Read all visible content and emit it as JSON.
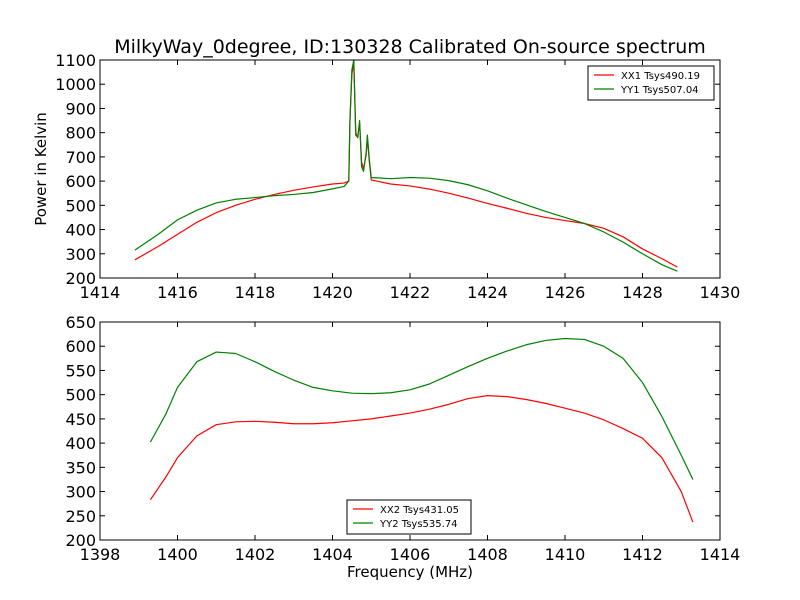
{
  "chart_data": [
    {
      "type": "line",
      "title": "MilkyWay_0degree, ID:130328 Calibrated On-source spectrum",
      "xlabel": "",
      "ylabel": "Power in Kelvin",
      "xlim": [
        1414,
        1430
      ],
      "ylim": [
        200,
        1100
      ],
      "xticks": [
        1414,
        1416,
        1418,
        1420,
        1422,
        1424,
        1426,
        1428,
        1430
      ],
      "yticks": [
        200,
        300,
        400,
        500,
        600,
        700,
        800,
        900,
        1000,
        1100
      ],
      "grid": false,
      "legend_position": "top-right",
      "series": [
        {
          "name": "XX1 Tsys490.19",
          "color": "#ff0000",
          "points": [
            [
              1414.9,
              275
            ],
            [
              1415.5,
              330
            ],
            [
              1416,
              380
            ],
            [
              1416.5,
              430
            ],
            [
              1417,
              470
            ],
            [
              1417.5,
              500
            ],
            [
              1418,
              525
            ],
            [
              1418.5,
              545
            ],
            [
              1419,
              562
            ],
            [
              1419.5,
              576
            ],
            [
              1420,
              588
            ],
            [
              1420.3,
              592
            ],
            [
              1420.42,
              600
            ],
            [
              1420.45,
              850
            ],
            [
              1420.5,
              1040
            ],
            [
              1420.55,
              1090
            ],
            [
              1420.6,
              800
            ],
            [
              1420.65,
              780
            ],
            [
              1420.7,
              840
            ],
            [
              1420.75,
              680
            ],
            [
              1420.8,
              650
            ],
            [
              1420.87,
              710
            ],
            [
              1420.9,
              780
            ],
            [
              1420.95,
              680
            ],
            [
              1421,
              605
            ],
            [
              1421.5,
              588
            ],
            [
              1422,
              580
            ],
            [
              1422.5,
              567
            ],
            [
              1423,
              550
            ],
            [
              1423.5,
              530
            ],
            [
              1424,
              508
            ],
            [
              1424.5,
              488
            ],
            [
              1425,
              467
            ],
            [
              1425.5,
              450
            ],
            [
              1426,
              437
            ],
            [
              1426.5,
              425
            ],
            [
              1427,
              405
            ],
            [
              1427.5,
              370
            ],
            [
              1428,
              320
            ],
            [
              1428.5,
              280
            ],
            [
              1428.9,
              245
            ]
          ]
        },
        {
          "name": "YY1 Tsys507.04",
          "color": "#008000",
          "points": [
            [
              1414.9,
              315
            ],
            [
              1415.5,
              380
            ],
            [
              1416,
              440
            ],
            [
              1416.5,
              480
            ],
            [
              1417,
              510
            ],
            [
              1417.5,
              525
            ],
            [
              1418,
              532
            ],
            [
              1418.5,
              540
            ],
            [
              1419,
              545
            ],
            [
              1419.5,
              553
            ],
            [
              1420,
              568
            ],
            [
              1420.3,
              578
            ],
            [
              1420.42,
              600
            ],
            [
              1420.45,
              850
            ],
            [
              1420.5,
              1060
            ],
            [
              1420.55,
              1100
            ],
            [
              1420.6,
              790
            ],
            [
              1420.65,
              780
            ],
            [
              1420.7,
              850
            ],
            [
              1420.75,
              660
            ],
            [
              1420.8,
              640
            ],
            [
              1420.87,
              720
            ],
            [
              1420.9,
              790
            ],
            [
              1420.95,
              690
            ],
            [
              1421,
              615
            ],
            [
              1421.5,
              610
            ],
            [
              1422,
              615
            ],
            [
              1422.5,
              612
            ],
            [
              1423,
              602
            ],
            [
              1423.5,
              585
            ],
            [
              1424,
              560
            ],
            [
              1424.5,
              530
            ],
            [
              1425,
              502
            ],
            [
              1425.5,
              475
            ],
            [
              1426,
              450
            ],
            [
              1426.5,
              425
            ],
            [
              1427,
              390
            ],
            [
              1427.5,
              348
            ],
            [
              1428,
              300
            ],
            [
              1428.5,
              255
            ],
            [
              1428.9,
              228
            ]
          ]
        }
      ]
    },
    {
      "type": "line",
      "title": "",
      "xlabel": "Frequency (MHz)",
      "ylabel": "",
      "xlim": [
        1398,
        1414
      ],
      "ylim": [
        200,
        650
      ],
      "xticks": [
        1398,
        1400,
        1402,
        1404,
        1406,
        1408,
        1410,
        1412,
        1414
      ],
      "yticks": [
        200,
        250,
        300,
        350,
        400,
        450,
        500,
        550,
        600,
        650
      ],
      "grid": false,
      "legend_position": "bottom-center",
      "series": [
        {
          "name": "XX2 Tsys431.05",
          "color": "#ff0000",
          "points": [
            [
              1399.3,
              283
            ],
            [
              1399.7,
              330
            ],
            [
              1400,
              370
            ],
            [
              1400.5,
              415
            ],
            [
              1401,
              438
            ],
            [
              1401.5,
              444
            ],
            [
              1402,
              445
            ],
            [
              1402.5,
              443
            ],
            [
              1403,
              440
            ],
            [
              1403.5,
              440
            ],
            [
              1404,
              442
            ],
            [
              1404.5,
              446
            ],
            [
              1405,
              450
            ],
            [
              1405.5,
              456
            ],
            [
              1406,
              462
            ],
            [
              1406.5,
              470
            ],
            [
              1407,
              480
            ],
            [
              1407.5,
              492
            ],
            [
              1408,
              498
            ],
            [
              1408.5,
              496
            ],
            [
              1409,
              490
            ],
            [
              1409.5,
              482
            ],
            [
              1410,
              472
            ],
            [
              1410.5,
              462
            ],
            [
              1411,
              448
            ],
            [
              1411.5,
              430
            ],
            [
              1412,
              410
            ],
            [
              1412.5,
              370
            ],
            [
              1413,
              300
            ],
            [
              1413.3,
              237
            ]
          ]
        },
        {
          "name": "YY2 Tsys535.74",
          "color": "#008000",
          "points": [
            [
              1399.3,
              402
            ],
            [
              1399.7,
              460
            ],
            [
              1400,
              515
            ],
            [
              1400.5,
              568
            ],
            [
              1401,
              588
            ],
            [
              1401.5,
              585
            ],
            [
              1402,
              568
            ],
            [
              1402.5,
              548
            ],
            [
              1403,
              530
            ],
            [
              1403.5,
              515
            ],
            [
              1404,
              508
            ],
            [
              1404.5,
              503
            ],
            [
              1405,
              502
            ],
            [
              1405.5,
              504
            ],
            [
              1406,
              510
            ],
            [
              1406.5,
              522
            ],
            [
              1407,
              540
            ],
            [
              1407.5,
              558
            ],
            [
              1408,
              575
            ],
            [
              1408.5,
              590
            ],
            [
              1409,
              603
            ],
            [
              1409.5,
              612
            ],
            [
              1410,
              616
            ],
            [
              1410.5,
              614
            ],
            [
              1411,
              600
            ],
            [
              1411.5,
              575
            ],
            [
              1412,
              525
            ],
            [
              1412.5,
              455
            ],
            [
              1413,
              375
            ],
            [
              1413.3,
              325
            ]
          ]
        }
      ]
    }
  ]
}
